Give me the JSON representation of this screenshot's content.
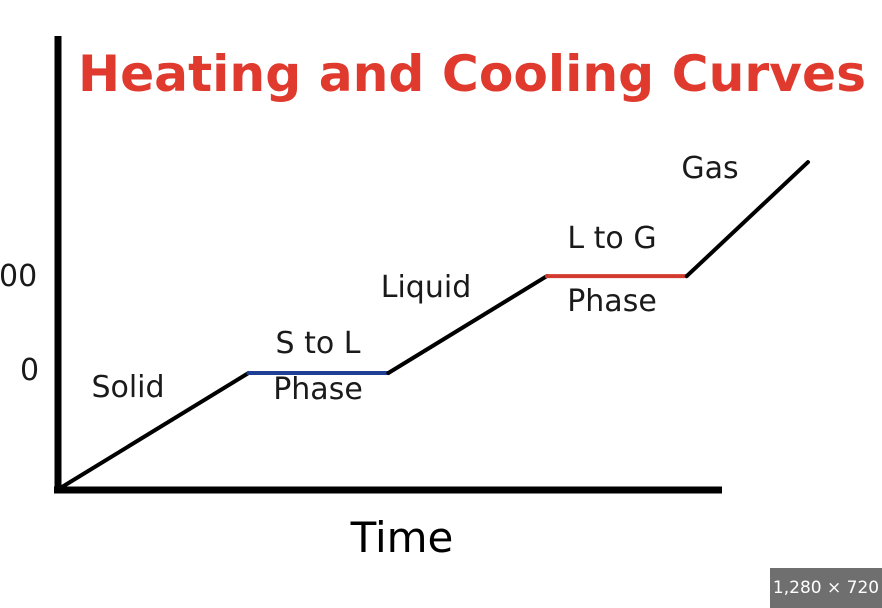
{
  "chart_data": {
    "type": "line",
    "title": "Heating and Cooling Curves",
    "xlabel": "Time",
    "ylabel": "",
    "y_tick_labels": [
      "00",
      "0"
    ],
    "segments": [
      {
        "name": "Solid",
        "label": "Solid",
        "start": [
          0,
          0
        ],
        "end": [
          1,
          1
        ],
        "color": "#000000"
      },
      {
        "name": "S to L Phase",
        "label_top": "S to L",
        "label_bottom": "Phase",
        "start": [
          1,
          1
        ],
        "end": [
          1.75,
          1
        ],
        "color": "#1f3f95"
      },
      {
        "name": "Liquid",
        "label": "Liquid",
        "start": [
          1.75,
          1
        ],
        "end": [
          2.6,
          1.85
        ],
        "color": "#000000"
      },
      {
        "name": "L to G Phase",
        "label_top": "L to G",
        "label_bottom": "Phase",
        "start": [
          2.6,
          1.85
        ],
        "end": [
          3.35,
          1.85
        ],
        "color": "#d23a2f"
      },
      {
        "name": "Gas",
        "label": "Gas",
        "start": [
          3.35,
          1.85
        ],
        "end": [
          4,
          2.85
        ],
        "color": "#000000"
      }
    ],
    "xlim": [
      0,
      4
    ],
    "ylim": [
      0,
      3
    ],
    "grid": false,
    "legend": "none"
  },
  "badge": {
    "text": "1,280 × 720"
  },
  "colors": {
    "title": "#e03a2e",
    "axis": "#000000",
    "text": "#1a1a1a"
  }
}
